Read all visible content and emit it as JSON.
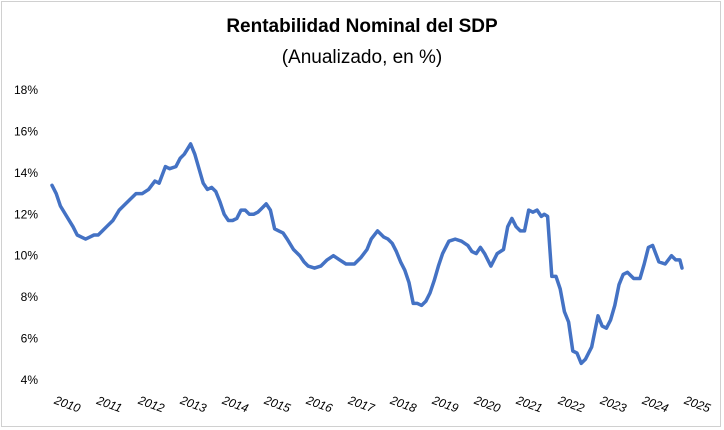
{
  "chart_data": {
    "type": "line",
    "title": "Rentabilidad Nominal del SDP",
    "subtitle": "(Anualizado, en %)",
    "xlabel": "",
    "ylabel": "",
    "ylim": [
      4,
      18
    ],
    "xlim": [
      2010,
      2025
    ],
    "y_ticks": [
      "4%",
      "6%",
      "8%",
      "10%",
      "12%",
      "14%",
      "16%",
      "18%"
    ],
    "x_ticks": [
      "2010",
      "2011",
      "2012",
      "2013",
      "2014",
      "2015",
      "2016",
      "2017",
      "2018",
      "2019",
      "2020",
      "2021",
      "2022",
      "2023",
      "2024",
      "2025"
    ],
    "grid": "none",
    "legend": "none",
    "series": [
      {
        "color": "#4472C4",
        "x": [
          2010.0,
          2010.1,
          2010.2,
          2010.35,
          2010.5,
          2010.6,
          2010.7,
          2010.8,
          2010.9,
          2011.0,
          2011.1,
          2011.2,
          2011.3,
          2011.45,
          2011.6,
          2011.75,
          2011.85,
          2012.0,
          2012.15,
          2012.3,
          2012.45,
          2012.55,
          2012.7,
          2012.8,
          2012.95,
          2013.05,
          2013.15,
          2013.3,
          2013.4,
          2013.5,
          2013.6,
          2013.7,
          2013.8,
          2013.9,
          2014.0,
          2014.1,
          2014.2,
          2014.3,
          2014.4,
          2014.5,
          2014.6,
          2014.7,
          2014.8,
          2014.9,
          2015.0,
          2015.1,
          2015.2,
          2015.3,
          2015.4,
          2015.5,
          2015.6,
          2015.75,
          2015.9,
          2016.0,
          2016.1,
          2016.25,
          2016.4,
          2016.55,
          2016.7,
          2016.85,
          2017.0,
          2017.1,
          2017.2,
          2017.35,
          2017.5,
          2017.6,
          2017.75,
          2017.9,
          2018.0,
          2018.1,
          2018.2,
          2018.3,
          2018.4,
          2018.5,
          2018.6,
          2018.7,
          2018.8,
          2018.9,
          2019.0,
          2019.1,
          2019.2,
          2019.3,
          2019.45,
          2019.6,
          2019.75,
          2019.9,
          2020.0,
          2020.1,
          2020.2,
          2020.3,
          2020.45,
          2020.6,
          2020.75,
          2020.85,
          2020.95,
          2021.05,
          2021.15,
          2021.25,
          2021.35,
          2021.45,
          2021.55,
          2021.65,
          2021.72,
          2021.8,
          2021.9,
          2022.0,
          2022.1,
          2022.2,
          2022.3,
          2022.4,
          2022.5,
          2022.6,
          2022.7,
          2022.85,
          2023.0,
          2023.1,
          2023.2,
          2023.3,
          2023.4,
          2023.5,
          2023.6,
          2023.7,
          2023.85,
          2024.0,
          2024.1,
          2024.2,
          2024.3,
          2024.45,
          2024.6,
          2024.75,
          2024.85,
          2024.95
        ],
        "values": [
          13.4,
          13.0,
          12.4,
          11.9,
          11.4,
          11.0,
          10.9,
          10.8,
          10.9,
          11.0,
          11.0,
          11.2,
          11.4,
          11.7,
          12.2,
          12.5,
          12.7,
          13.0,
          13.0,
          13.2,
          13.6,
          13.5,
          14.3,
          14.2,
          14.3,
          14.7,
          14.9,
          15.4,
          14.9,
          14.2,
          13.5,
          13.2,
          13.3,
          13.1,
          12.6,
          12.0,
          11.7,
          11.7,
          11.8,
          12.2,
          12.2,
          12.0,
          12.0,
          12.1,
          12.3,
          12.5,
          12.2,
          11.3,
          11.2,
          11.1,
          10.8,
          10.3,
          10.0,
          9.7,
          9.5,
          9.4,
          9.5,
          9.8,
          10.0,
          9.8,
          9.6,
          9.6,
          9.6,
          9.9,
          10.3,
          10.8,
          11.2,
          10.9,
          10.8,
          10.6,
          10.2,
          9.7,
          9.3,
          8.7,
          7.7,
          7.7,
          7.6,
          7.8,
          8.2,
          8.8,
          9.5,
          10.1,
          10.7,
          10.8,
          10.7,
          10.5,
          10.2,
          10.1,
          10.4,
          10.1,
          9.5,
          10.1,
          10.3,
          11.4,
          11.8,
          11.4,
          11.2,
          11.2,
          12.2,
          12.1,
          12.2,
          11.9,
          12.0,
          11.9,
          9.0,
          9.0,
          8.4,
          7.3,
          6.8,
          5.4,
          5.3,
          4.8,
          5.0,
          5.6,
          7.1,
          6.6,
          6.5,
          6.9,
          7.6,
          8.6,
          9.1,
          9.2,
          8.9,
          8.9,
          9.6,
          10.4,
          10.5,
          9.7,
          9.6,
          10.0,
          9.8,
          9.8
        ],
        "end_value": 9.4,
        "end_x": 2025.0
      }
    ]
  }
}
